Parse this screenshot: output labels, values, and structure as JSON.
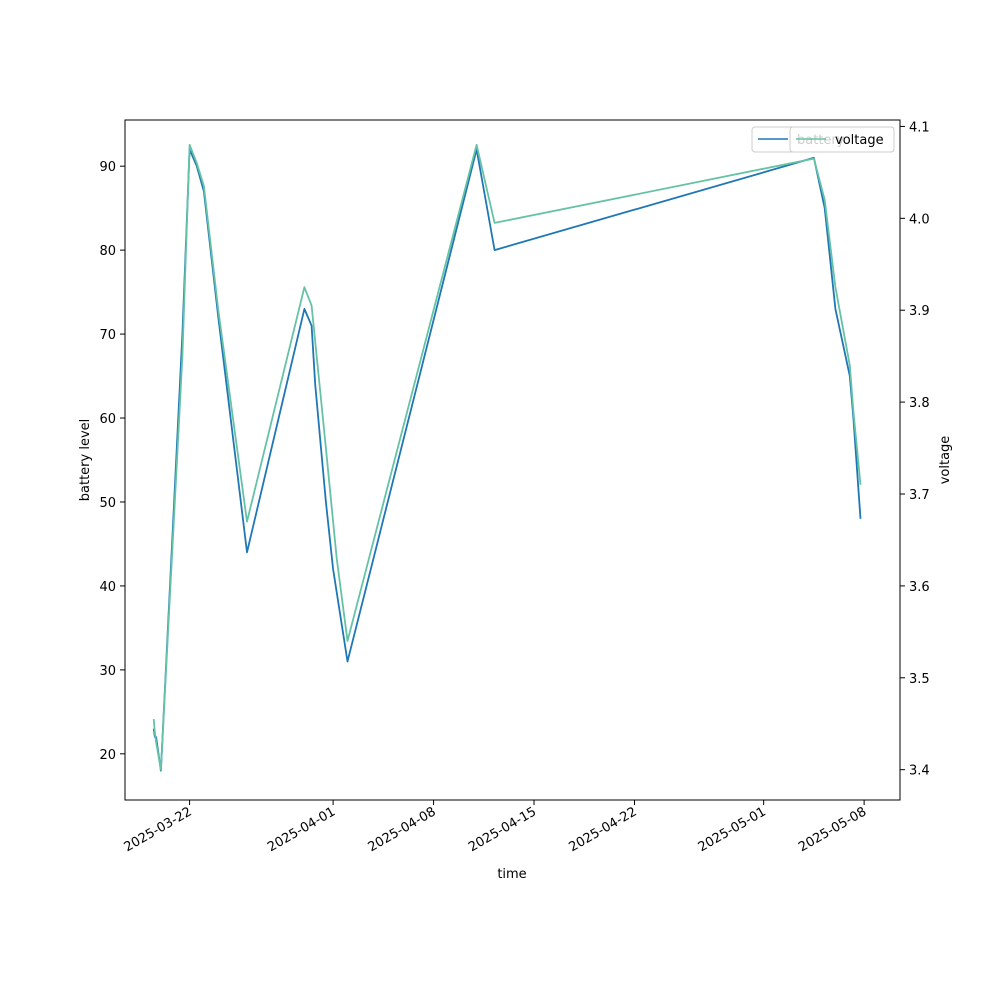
{
  "chart_data": {
    "type": "line",
    "xlabel": "time",
    "ylabel_left": "battery level",
    "ylabel_right": "voltage",
    "x_ticks": [
      "2025-03-22",
      "2025-04-01",
      "2025-04-08",
      "2025-04-15",
      "2025-04-22",
      "2025-05-01",
      "2025-05-08"
    ],
    "y_left_ticks": [
      20,
      30,
      40,
      50,
      60,
      70,
      80,
      90
    ],
    "y_right_ticks": [
      3.4,
      3.5,
      3.6,
      3.7,
      3.8,
      3.9,
      4.0,
      4.1
    ],
    "x_range": [
      "2025-03-17T12:00",
      "2025-05-10T12:00"
    ],
    "y_left_range": [
      14.5,
      95.5
    ],
    "y_right_range": [
      3.367,
      4.107
    ],
    "legend_placement": "upper right",
    "series": [
      {
        "name": "battery",
        "axis": "left",
        "color": "#1f77b4",
        "points": [
          [
            "2025-03-19T12:00",
            23
          ],
          [
            "2025-03-19T14:00",
            22
          ],
          [
            "2025-03-19T16:00",
            22
          ],
          [
            "2025-03-20T00:00",
            18
          ],
          [
            "2025-03-21T12:00",
            70
          ],
          [
            "2025-03-22T00:00",
            92
          ],
          [
            "2025-03-22T12:00",
            90
          ],
          [
            "2025-03-23T00:00",
            87
          ],
          [
            "2025-03-24T00:00",
            72
          ],
          [
            "2025-03-26T00:00",
            44
          ],
          [
            "2025-03-30T00:00",
            73
          ],
          [
            "2025-03-30T12:00",
            71
          ],
          [
            "2025-03-30T18:00",
            64
          ],
          [
            "2025-03-31T12:00",
            50
          ],
          [
            "2025-04-01T00:00",
            42
          ],
          [
            "2025-04-02T00:00",
            31
          ],
          [
            "2025-04-11T00:00",
            92
          ],
          [
            "2025-04-12T06:00",
            80
          ],
          [
            "2025-05-04T12:00",
            91
          ],
          [
            "2025-05-05T06:00",
            85
          ],
          [
            "2025-05-06T00:00",
            73
          ],
          [
            "2025-05-07T00:00",
            65
          ],
          [
            "2025-05-07T06:00",
            60
          ],
          [
            "2025-05-07T18:00",
            48
          ]
        ]
      },
      {
        "name": "voltage",
        "axis": "right",
        "color": "#66c2a5",
        "points": [
          [
            "2025-03-19T12:00",
            3.455
          ],
          [
            "2025-03-19T14:00",
            3.44
          ],
          [
            "2025-03-19T16:00",
            3.43
          ],
          [
            "2025-03-20T00:00",
            3.4
          ],
          [
            "2025-03-21T12:00",
            3.85
          ],
          [
            "2025-03-22T00:00",
            4.08
          ],
          [
            "2025-03-22T12:00",
            4.06
          ],
          [
            "2025-03-23T00:00",
            4.035
          ],
          [
            "2025-03-24T00:00",
            3.9
          ],
          [
            "2025-03-26T00:00",
            3.67
          ],
          [
            "2025-03-30T00:00",
            3.925
          ],
          [
            "2025-03-30T12:00",
            3.905
          ],
          [
            "2025-03-31T12:00",
            3.75
          ],
          [
            "2025-04-01T06:00",
            3.63
          ],
          [
            "2025-04-02T00:00",
            3.54
          ],
          [
            "2025-04-11T00:00",
            4.08
          ],
          [
            "2025-04-12T06:00",
            3.995
          ],
          [
            "2025-05-04T12:00",
            4.065
          ],
          [
            "2025-05-05T06:00",
            4.02
          ],
          [
            "2025-05-06T00:00",
            3.925
          ],
          [
            "2025-05-07T00:00",
            3.84
          ],
          [
            "2025-05-07T06:00",
            3.79
          ],
          [
            "2025-05-07T18:00",
            3.71
          ]
        ]
      }
    ]
  }
}
